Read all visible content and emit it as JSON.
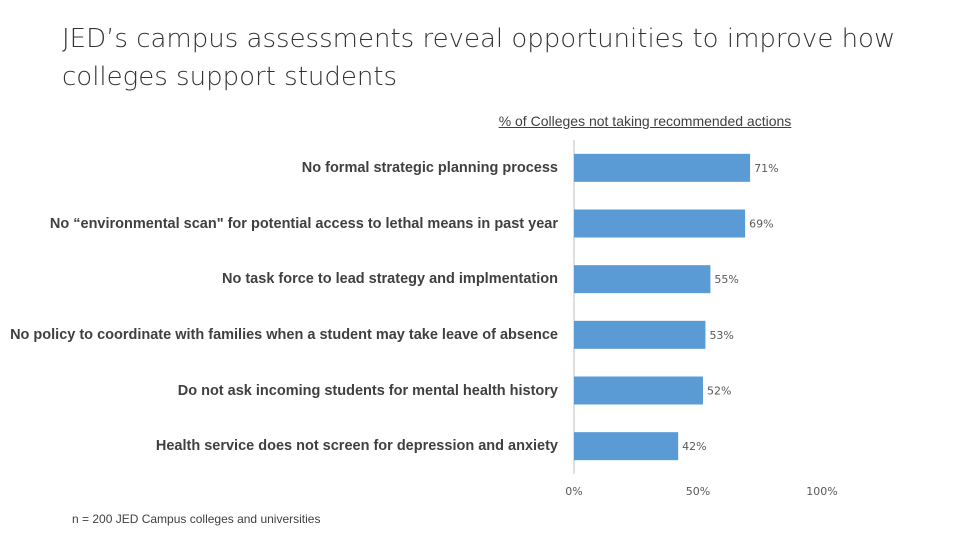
{
  "title": "JED’s campus assessments reveal opportunities to improve how colleges support students",
  "footnote": "n = 200 JED Campus colleges and universities",
  "chart_data": {
    "type": "hbar",
    "title": "% of Colleges not taking recommended actions",
    "categories": [
      "No formal strategic planning process",
      "No “environmental scan\" for potential access to lethal means in past year",
      "No task force to lead strategy and implmentation",
      "No policy to coordinate with families when a student may take leave of absence",
      "Do not ask incoming students for mental health history",
      "Health service does not screen for depression and anxiety"
    ],
    "values": [
      71,
      69,
      55,
      53,
      52,
      42
    ],
    "value_labels": [
      "71%",
      "69%",
      "55%",
      "53%",
      "52%",
      "42%"
    ],
    "color": "#5b9bd5",
    "xlim": [
      0,
      100
    ],
    "xticks": [
      {
        "value": 0,
        "label": "0%"
      },
      {
        "value": 50,
        "label": "50%"
      },
      {
        "value": 100,
        "label": "100%"
      }
    ]
  }
}
